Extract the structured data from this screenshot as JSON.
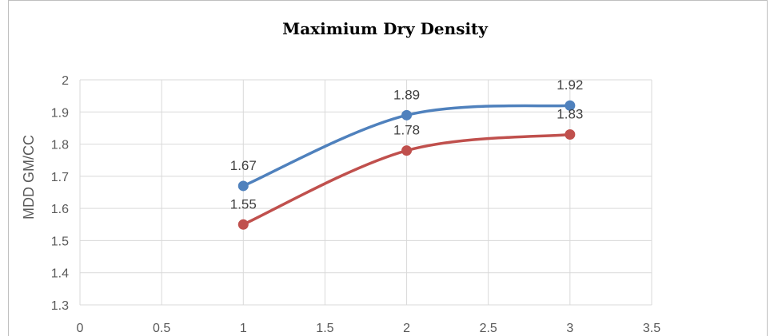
{
  "chart_data": {
    "type": "line",
    "title": "Maximium Dry Density",
    "xlabel": "",
    "ylabel": "MDD GM/CC",
    "xlim": [
      0,
      3.5
    ],
    "ylim": [
      1.3,
      2
    ],
    "xticks": [
      0,
      0.5,
      1,
      1.5,
      2,
      2.5,
      3,
      3.5
    ],
    "yticks": [
      1.3,
      1.4,
      1.5,
      1.6,
      1.7,
      1.8,
      1.9,
      2
    ],
    "grid": true,
    "smooth": true,
    "series": [
      {
        "color": "#4f81bd",
        "x": [
          1,
          2,
          3
        ],
        "values": [
          1.67,
          1.89,
          1.92
        ],
        "labels": [
          "1.67",
          "1.89",
          "1.92"
        ]
      },
      {
        "color": "#c0504d",
        "x": [
          1,
          2,
          3
        ],
        "values": [
          1.55,
          1.78,
          1.83
        ],
        "labels": [
          "1.55",
          "1.78",
          "1.83"
        ]
      }
    ]
  }
}
